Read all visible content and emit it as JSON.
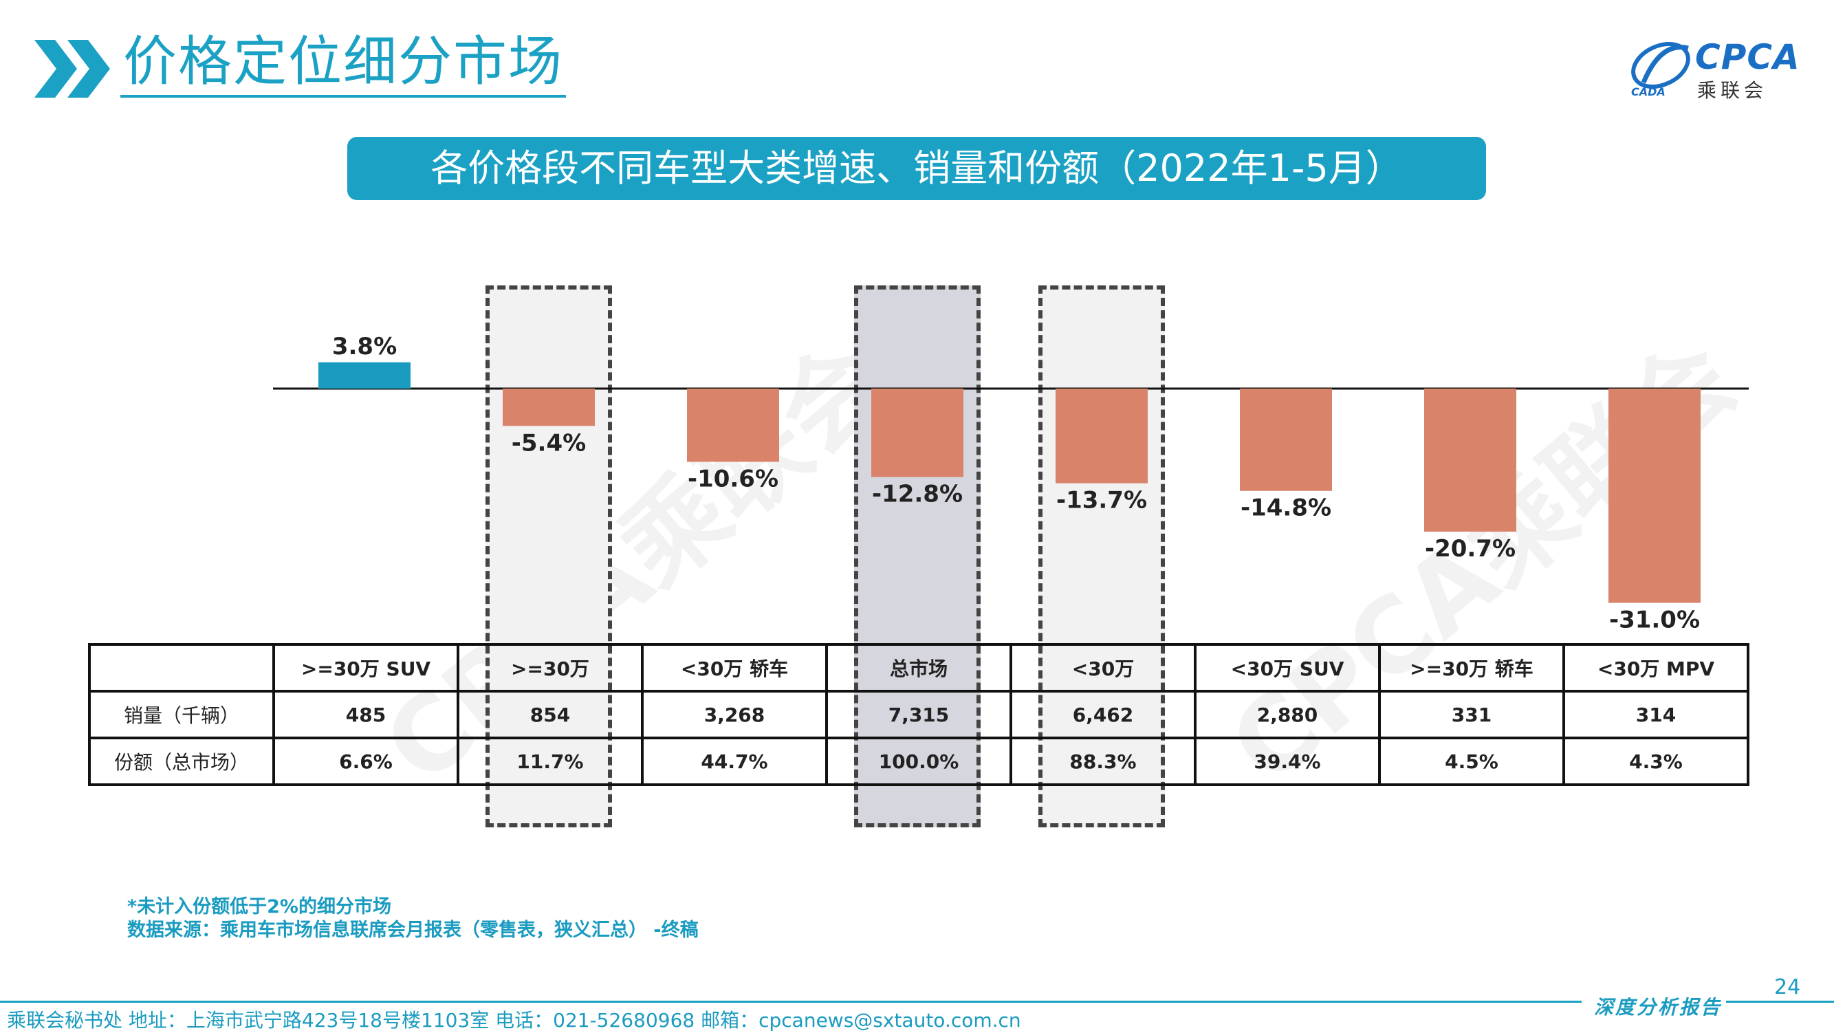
{
  "header": {
    "title": "价格定位细分市场",
    "logo_text": "CPCA",
    "logo_sub": "乘联会",
    "logo_small": "CADA"
  },
  "banner": {
    "text": "各价格段不同车型大类增速、销量和份额（2022年1-5月）"
  },
  "chart_data": {
    "type": "bar",
    "categories": [
      ">=30万 SUV",
      ">=30万",
      "<30万 轿车",
      "总市场",
      "<30万",
      "<30万 SUV",
      ">=30万 轿车",
      "<30万 MPV"
    ],
    "values": [
      3.8,
      -5.4,
      -10.6,
      -12.8,
      -13.7,
      -14.8,
      -20.7,
      -31.0
    ],
    "value_labels": [
      "3.8%",
      "-5.4%",
      "-10.6%",
      "-12.8%",
      "-13.7%",
      "-14.8%",
      "-20.7%",
      "-31.0%"
    ],
    "ylim": [
      -31.0,
      3.8
    ],
    "colors": {
      "positive": "#1a9bc0",
      "negative": "#d9836a"
    },
    "highlight": {
      "dashed_light": [
        1,
        4
      ],
      "dashed_dark": [
        3
      ]
    },
    "grid": false
  },
  "table": {
    "rows": [
      {
        "label": "销量（千辆）",
        "values": [
          "485",
          "854",
          "3,268",
          "7,315",
          "6,462",
          "2,880",
          "331",
          "314"
        ]
      },
      {
        "label": "份额（总市场）",
        "values": [
          "6.6%",
          "11.7%",
          "44.7%",
          "100.0%",
          "88.3%",
          "39.4%",
          "4.5%",
          "4.3%"
        ]
      }
    ]
  },
  "notes": {
    "line1": "*未计入份额低于2%的细分市场",
    "line2": "数据来源：乘用车市场信息联席会月报表（零售表，狭义汇总） -终稿"
  },
  "footer": {
    "text": "乘联会秘书处   地址：上海市武宁路423号18号楼1103室   电话：021-52680968   邮箱：cpcanews@sxtauto.com.cn",
    "page_number": "24",
    "report_tag": "深度分析报告"
  },
  "watermark": "CPCA乘联会"
}
